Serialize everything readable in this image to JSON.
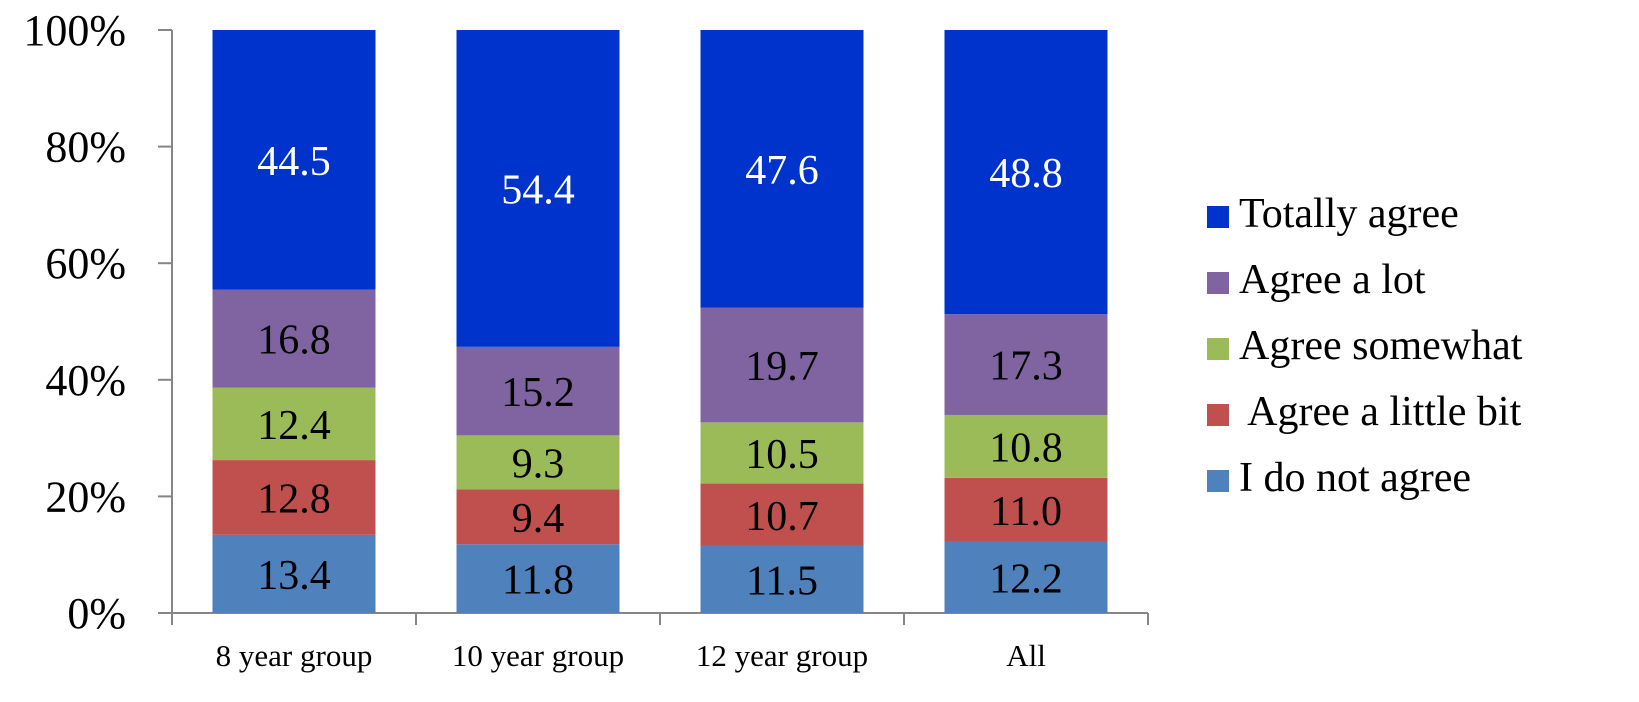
{
  "chart_data": {
    "type": "bar",
    "stacked": true,
    "percent_stacked": true,
    "categories": [
      "8 year group",
      "10 year group",
      "12 year group",
      "All"
    ],
    "series": [
      {
        "name": "I do not agree",
        "values": [
          13.4,
          11.8,
          11.5,
          12.2
        ],
        "color": "#4F81BD",
        "label_color": "#000000"
      },
      {
        "name": " Agree a little bit",
        "values": [
          12.8,
          9.4,
          10.7,
          11.0
        ],
        "color": "#C0504D",
        "label_color": "#000000"
      },
      {
        "name": "Agree somewhat",
        "values": [
          12.4,
          9.3,
          10.5,
          10.8
        ],
        "color": "#9BBB59",
        "label_color": "#000000"
      },
      {
        "name": "Agree a lot",
        "values": [
          16.8,
          15.2,
          19.7,
          17.3
        ],
        "color": "#8064A2",
        "label_color": "#000000"
      },
      {
        "name": "Totally agree",
        "values": [
          44.5,
          54.4,
          47.6,
          48.8
        ],
        "color": "#0033CC",
        "label_color": "#FFFFFF"
      }
    ],
    "y_ticks": [
      "0%",
      "20%",
      "40%",
      "60%",
      "80%",
      "100%"
    ],
    "ylim": [
      0,
      100
    ],
    "legend_position": "right",
    "grid": false
  }
}
